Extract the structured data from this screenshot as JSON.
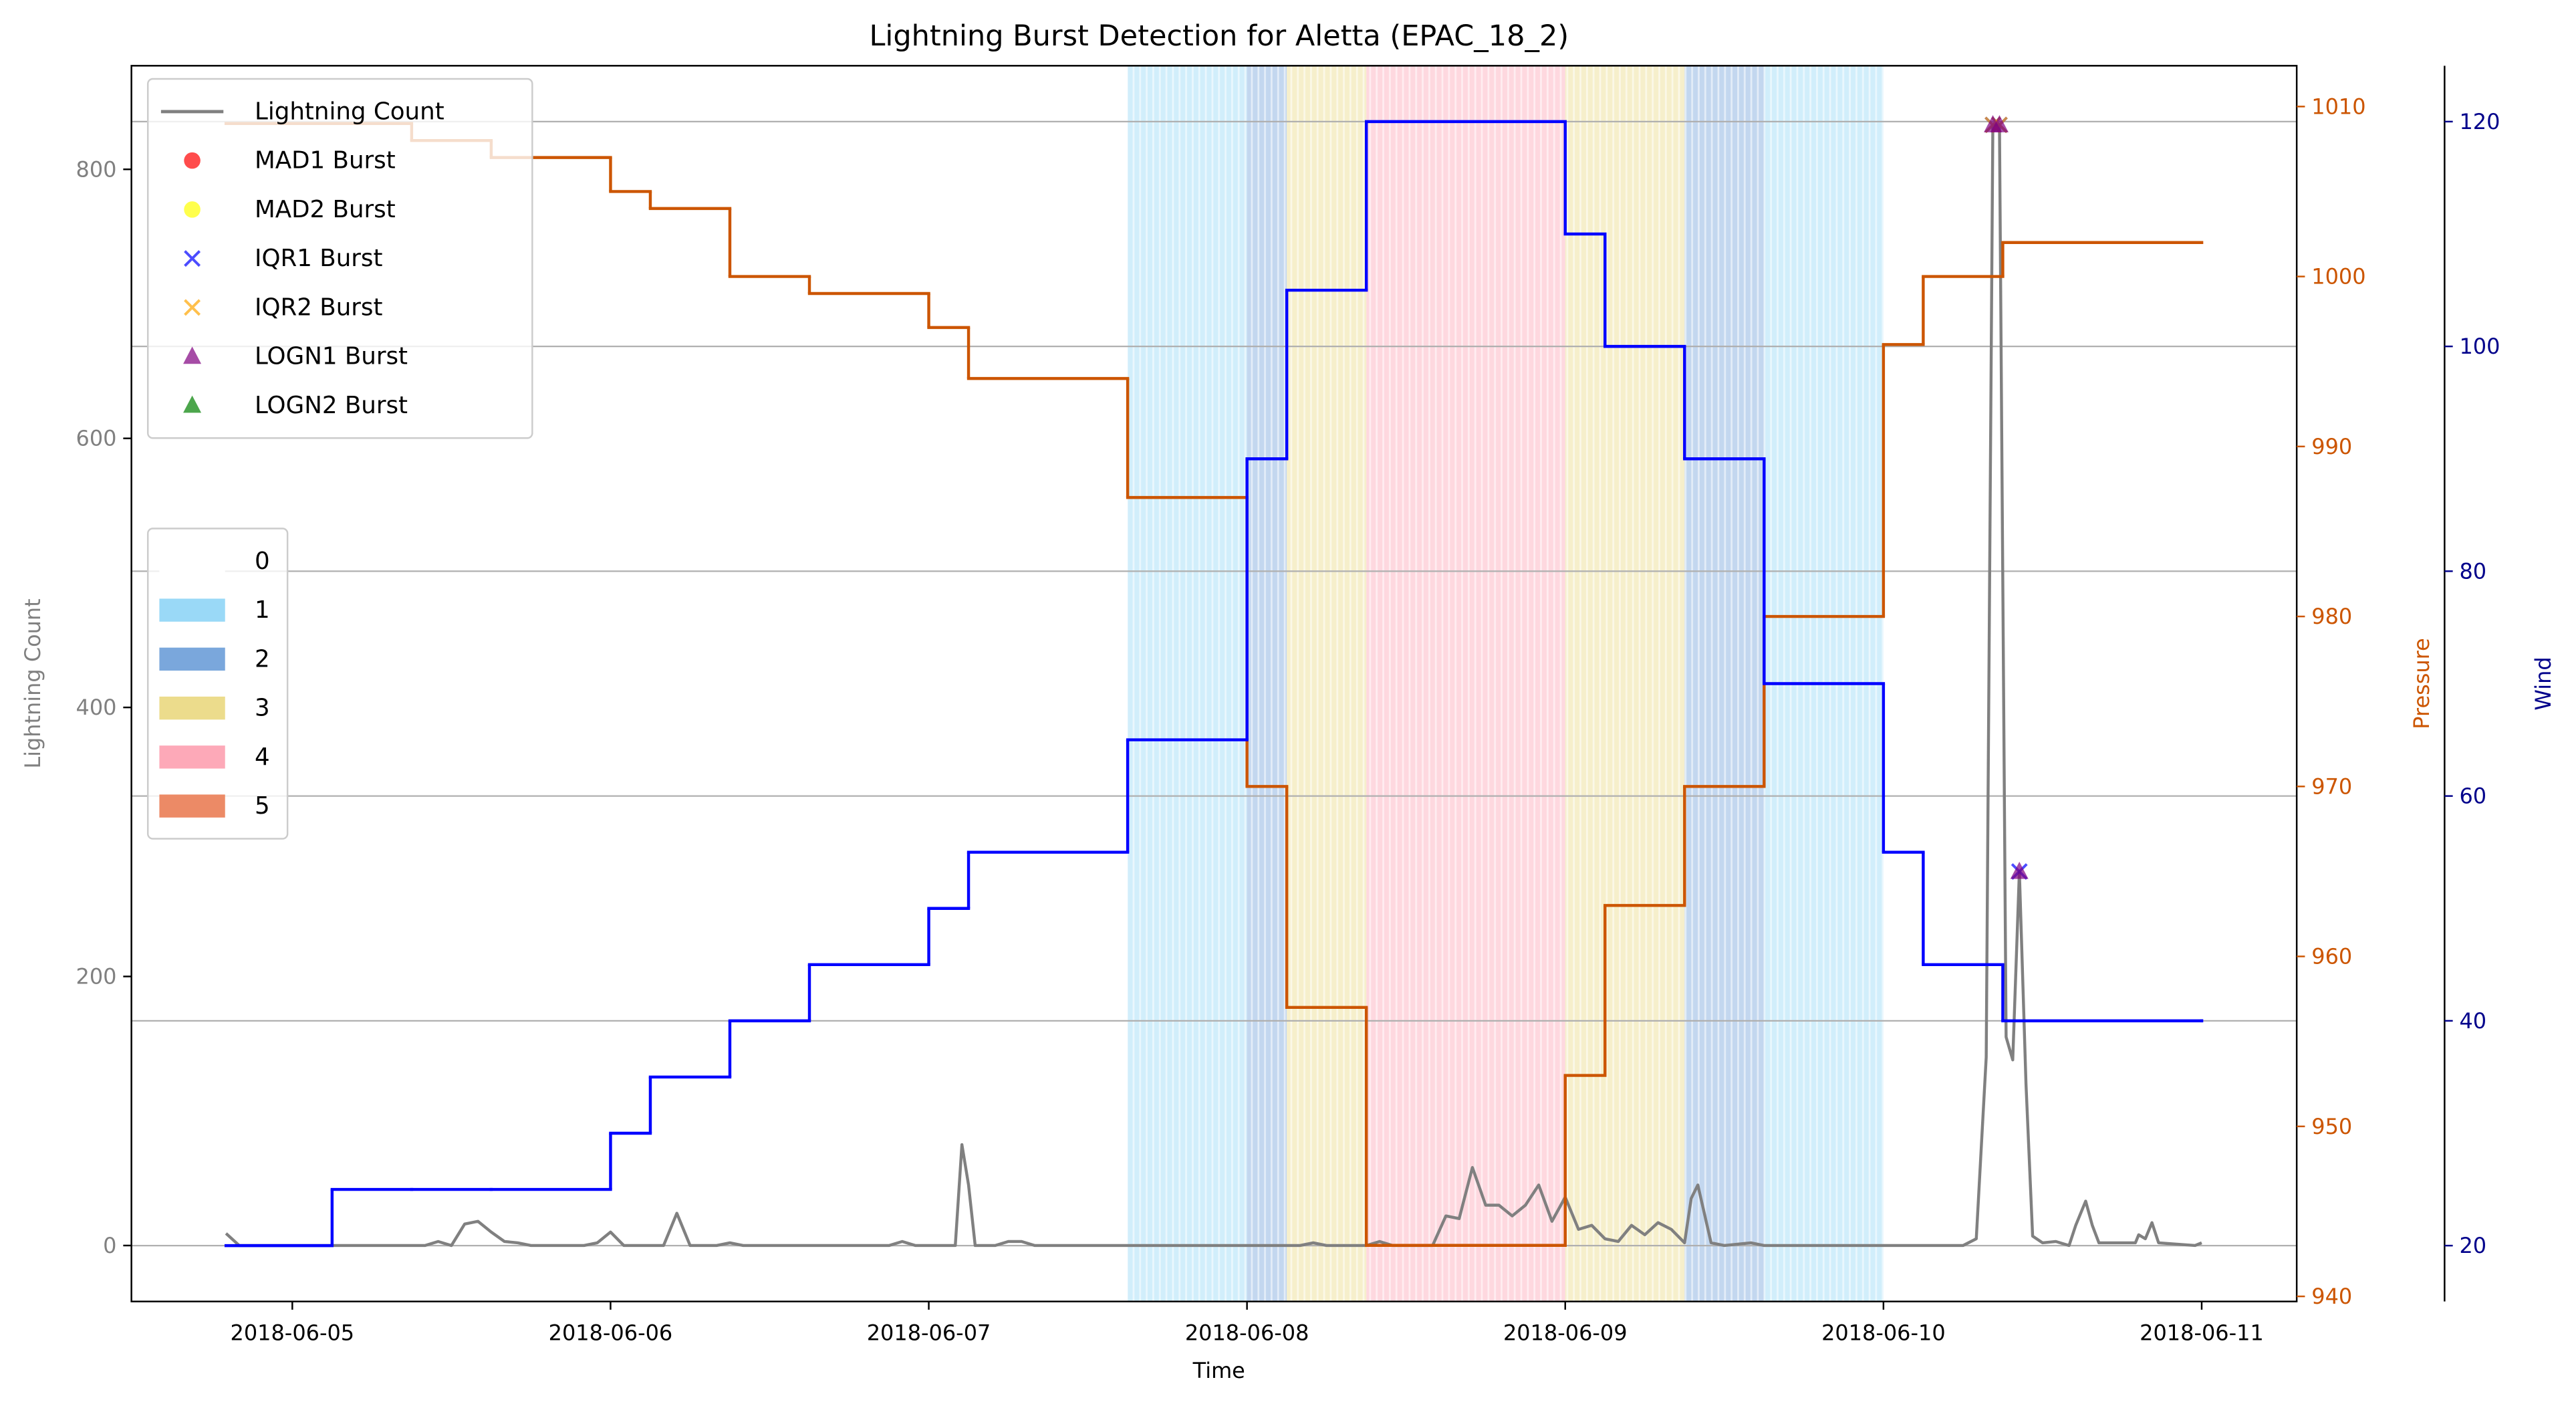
{
  "chart_data": {
    "type": "line",
    "title": "Lightning Burst Detection for Aletta (EPAC_18_2)",
    "x_label": "Time",
    "y_label": "Lightning Count",
    "y2_label": "Pressure",
    "y3_label": "Wind",
    "xlim": [
      "2018-06-04T11:52",
      "2018-06-11T07:10"
    ],
    "xticks": [
      "2018-06-05",
      "2018-06-06",
      "2018-06-07",
      "2018-06-08",
      "2018-06-09",
      "2018-06-10",
      "2018-06-11"
    ],
    "ylim": [
      -41.6,
      877
    ],
    "yticks": [
      0,
      200,
      400,
      600,
      800
    ],
    "y2lim": [
      939.7,
      1012.4
    ],
    "y2ticks": [
      940,
      950,
      960,
      970,
      980,
      990,
      1000,
      1010
    ],
    "y3lim": [
      15.03,
      124.97
    ],
    "y3ticks": [
      20,
      40,
      60,
      80,
      100,
      120
    ],
    "grid": "y3",
    "legend_loc": "upper left",
    "category_legend_loc": "center left",
    "y_color": "#808080",
    "y2_color": "#cc5500",
    "y3_color": "#00008b",
    "series": [
      {
        "name": "Lightning Count",
        "color": "#808080",
        "axis": "y",
        "x": [
          "2018-06-04T19:00",
          "2018-06-04T20:00",
          "2018-06-05T10:00",
          "2018-06-05T11:00",
          "2018-06-05T12:00",
          "2018-06-05T13:00",
          "2018-06-05T14:00",
          "2018-06-05T15:00",
          "2018-06-05T16:00",
          "2018-06-05T17:00",
          "2018-06-05T18:00",
          "2018-06-05T22:00",
          "2018-06-05T23:00",
          "2018-06-06T00:00",
          "2018-06-06T01:00",
          "2018-06-06T04:00",
          "2018-06-06T05:00",
          "2018-06-06T06:00",
          "2018-06-06T08:00",
          "2018-06-06T09:00",
          "2018-06-06T10:00",
          "2018-06-06T21:00",
          "2018-06-06T22:00",
          "2018-06-06T23:00",
          "2018-06-07T02:00",
          "2018-06-07T02:30",
          "2018-06-07T03:00",
          "2018-06-07T03:30",
          "2018-06-07T05:00",
          "2018-06-07T06:00",
          "2018-06-07T07:00",
          "2018-06-07T08:00",
          "2018-06-08T04:00",
          "2018-06-08T05:00",
          "2018-06-08T06:00",
          "2018-06-08T09:00",
          "2018-06-08T10:00",
          "2018-06-08T11:00",
          "2018-06-08T14:00",
          "2018-06-08T15:00",
          "2018-06-08T16:00",
          "2018-06-08T17:00",
          "2018-06-08T18:00",
          "2018-06-08T19:00",
          "2018-06-08T20:00",
          "2018-06-08T21:00",
          "2018-06-08T22:00",
          "2018-06-08T23:00",
          "2018-06-09T00:00",
          "2018-06-09T01:00",
          "2018-06-09T02:00",
          "2018-06-09T03:00",
          "2018-06-09T04:00",
          "2018-06-09T05:00",
          "2018-06-09T06:00",
          "2018-06-09T07:00",
          "2018-06-09T08:00",
          "2018-06-09T09:00",
          "2018-06-09T09:30",
          "2018-06-09T10:00",
          "2018-06-09T11:00",
          "2018-06-09T12:00",
          "2018-06-09T14:00",
          "2018-06-09T15:00",
          "2018-06-10T06:00",
          "2018-06-10T07:00",
          "2018-06-10T07:45",
          "2018-06-10T08:15",
          "2018-06-10T08:45",
          "2018-06-10T09:15",
          "2018-06-10T09:45",
          "2018-06-10T10:15",
          "2018-06-10T10:45",
          "2018-06-10T11:15",
          "2018-06-10T12:00",
          "2018-06-10T13:00",
          "2018-06-10T14:00",
          "2018-06-10T14:30",
          "2018-06-10T15:15",
          "2018-06-10T15:45",
          "2018-06-10T16:15",
          "2018-06-10T19:00",
          "2018-06-10T19:15",
          "2018-06-10T19:45",
          "2018-06-10T20:15",
          "2018-06-10T20:45",
          "2018-06-10T23:30",
          "2018-06-11T00:00"
        ],
        "values": [
          9,
          0,
          0,
          3,
          0,
          16,
          18,
          10,
          3,
          2,
          0,
          0,
          2,
          10,
          0,
          0,
          24,
          0,
          0,
          2,
          0,
          0,
          3,
          0,
          0,
          75,
          45,
          0,
          0,
          3,
          3,
          0,
          0,
          2,
          0,
          0,
          3,
          0,
          0,
          22,
          20,
          58,
          30,
          30,
          22,
          30,
          45,
          18,
          36,
          12,
          15,
          5,
          3,
          15,
          8,
          17,
          12,
          2,
          35,
          45,
          2,
          0,
          2,
          0,
          0,
          5,
          140,
          833,
          833,
          155,
          138,
          278,
          120,
          7,
          2,
          3,
          0,
          15,
          33,
          15,
          2,
          2,
          8,
          5,
          17,
          2,
          0,
          2
        ]
      },
      {
        "color": "#cc5500",
        "axis": "y2",
        "drawstyle": "steps-post",
        "x": [
          "2018-06-04T19:00",
          "2018-06-05T03:00",
          "2018-06-05T09:00",
          "2018-06-05T15:00",
          "2018-06-06T00:00",
          "2018-06-06T03:00",
          "2018-06-06T09:00",
          "2018-06-06T15:00",
          "2018-06-07T00:00",
          "2018-06-07T03:00",
          "2018-06-07T15:00",
          "2018-06-08T00:00",
          "2018-06-08T03:00",
          "2018-06-08T09:00",
          "2018-06-09T00:00",
          "2018-06-09T03:00",
          "2018-06-09T09:00",
          "2018-06-09T15:00",
          "2018-06-10T00:00",
          "2018-06-10T03:00",
          "2018-06-10T09:00",
          "2018-06-11T00:00"
        ],
        "values": [
          1009,
          1009,
          1008,
          1007,
          1005,
          1004,
          1000,
          999,
          997,
          994,
          987,
          970,
          957,
          943,
          953,
          963,
          970,
          980,
          996,
          1000,
          1002,
          1002
        ]
      },
      {
        "color": "#0000ff",
        "axis": "y3",
        "drawstyle": "steps-post",
        "x": [
          "2018-06-04T19:00",
          "2018-06-05T03:00",
          "2018-06-05T09:00",
          "2018-06-05T15:00",
          "2018-06-06T00:00",
          "2018-06-06T03:00",
          "2018-06-06T09:00",
          "2018-06-06T15:00",
          "2018-06-07T00:00",
          "2018-06-07T03:00",
          "2018-06-07T15:00",
          "2018-06-08T00:00",
          "2018-06-08T03:00",
          "2018-06-08T09:00",
          "2018-06-09T00:00",
          "2018-06-09T03:00",
          "2018-06-09T09:00",
          "2018-06-09T15:00",
          "2018-06-10T00:00",
          "2018-06-10T03:00",
          "2018-06-10T09:00",
          "2018-06-11T00:00"
        ],
        "values": [
          20,
          25,
          25,
          25,
          30,
          35,
          40,
          45,
          50,
          55,
          65,
          90,
          105,
          120,
          110,
          100,
          90,
          70,
          55,
          45,
          40,
          40
        ]
      },
      {
        "name": "MAD1 Burst",
        "color": "#ff0000",
        "axis": "y",
        "marker": "circle",
        "x": [],
        "values": []
      },
      {
        "name": "MAD2 Burst",
        "color": "#ffff00",
        "axis": "y",
        "marker": "circle",
        "x": [],
        "values": []
      },
      {
        "name": "IQR1 Burst",
        "color": "#0000ff",
        "axis": "y",
        "marker": "x",
        "x": [
          "2018-06-10T08:15",
          "2018-06-10T08:45",
          "2018-06-10T10:15"
        ],
        "values": [
          833,
          833,
          278
        ]
      },
      {
        "name": "IQR2 Burst",
        "color": "#ffa500",
        "axis": "y",
        "marker": "x",
        "x": [
          "2018-06-10T08:15",
          "2018-06-10T08:45"
        ],
        "values": [
          833,
          833
        ]
      },
      {
        "name": "LOGN1 Burst",
        "color": "#800080",
        "axis": "y",
        "marker": "triangle",
        "x": [
          "2018-06-10T08:15",
          "2018-06-10T08:45",
          "2018-06-10T10:15"
        ],
        "values": [
          833,
          833,
          278
        ]
      },
      {
        "name": "LOGN2 Burst",
        "color": "#008000",
        "axis": "y",
        "marker": "triangle",
        "x": [],
        "values": []
      }
    ],
    "category_legend": [
      {
        "label": "0",
        "color": "#ffffff"
      },
      {
        "label": "1",
        "color": "#9ad9f7"
      },
      {
        "label": "2",
        "color": "#7aa7dc"
      },
      {
        "label": "3",
        "color": "#ecdc8c"
      },
      {
        "label": "4",
        "color": "#fda9b8"
      },
      {
        "label": "5",
        "color": "#ec8a66"
      }
    ],
    "bands": [
      {
        "start": "2018-06-07T15:00",
        "end": "2018-06-08T00:00",
        "category": 1
      },
      {
        "start": "2018-06-08T00:00",
        "end": "2018-06-08T03:00",
        "category": 2
      },
      {
        "start": "2018-06-08T03:00",
        "end": "2018-06-08T09:00",
        "category": 3
      },
      {
        "start": "2018-06-08T09:00",
        "end": "2018-06-09T00:00",
        "category": 4
      },
      {
        "start": "2018-06-09T00:00",
        "end": "2018-06-09T09:00",
        "category": 3
      },
      {
        "start": "2018-06-09T09:00",
        "end": "2018-06-09T15:00",
        "category": 2
      },
      {
        "start": "2018-06-09T15:00",
        "end": "2018-06-10T00:00",
        "category": 1
      }
    ]
  }
}
